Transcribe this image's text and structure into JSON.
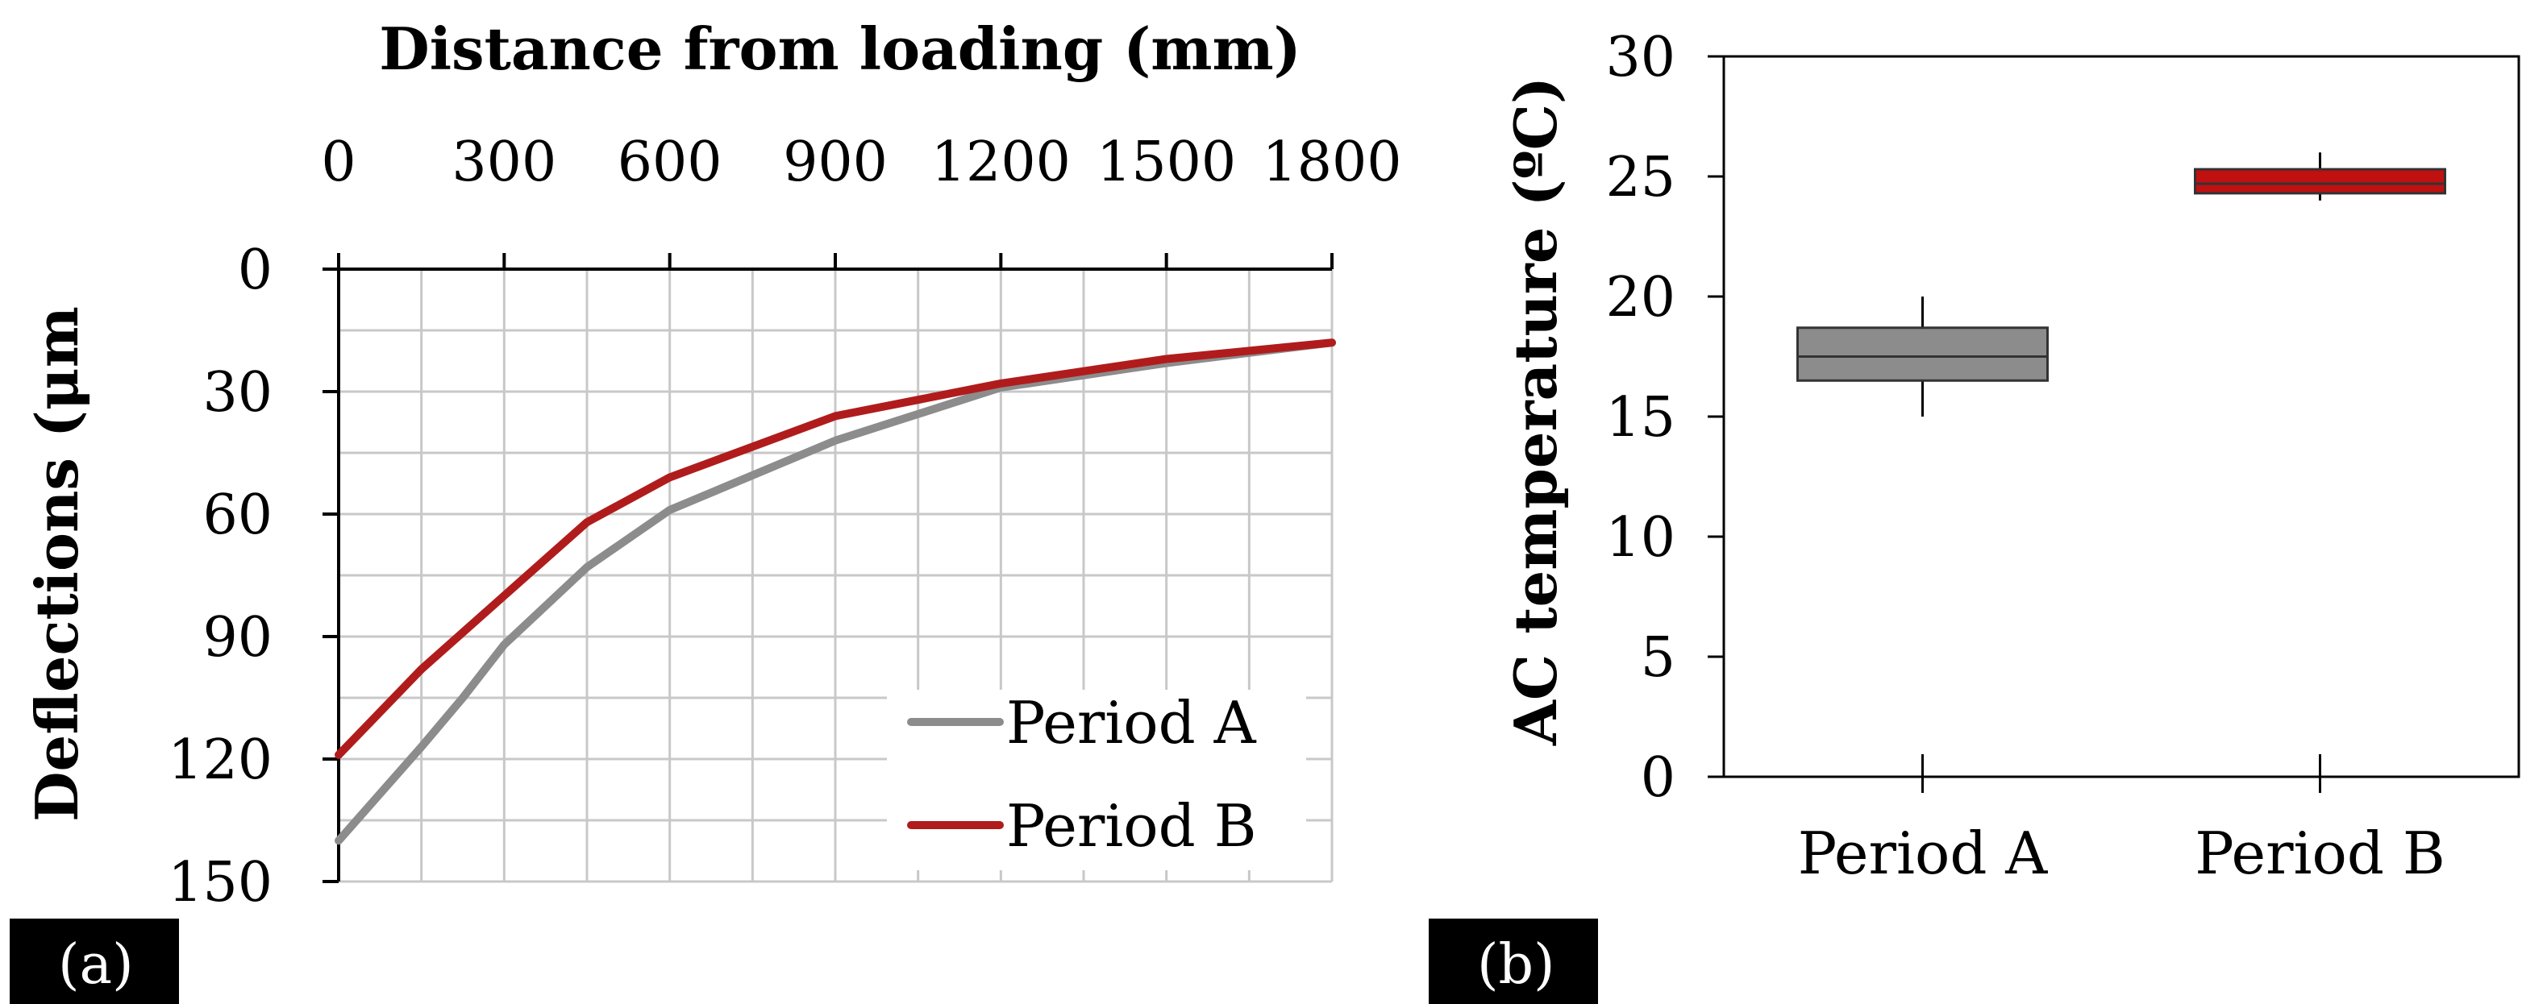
{
  "colors": {
    "series_a": "#8c8c8c",
    "series_b": "#b01c1c",
    "grid": "#c8c8c8",
    "axis": "#000000",
    "label_bg": "#000000",
    "label_text": "#ffffff",
    "box_a_fill": "#8c8c8c",
    "box_b_fill": "#c01010"
  },
  "panels": {
    "a_label": "(a)",
    "b_label": "(b)"
  },
  "chart_data": [
    {
      "id": "a",
      "type": "line",
      "title": "",
      "xlabel": "Distance from loading (mm)",
      "ylabel": "Deflections (μm",
      "x_axis_position": "top",
      "y_inverted": true,
      "xlim": [
        0,
        1800
      ],
      "ylim": [
        0,
        150
      ],
      "x_ticks": [
        0,
        300,
        600,
        900,
        1200,
        1500,
        1800
      ],
      "y_ticks": [
        0,
        30,
        60,
        90,
        120,
        150
      ],
      "x_grid_step": 150,
      "y_grid_step": 15,
      "grid": true,
      "legend_position": "bottom-right",
      "series": [
        {
          "name": "Period A",
          "color": "#8c8c8c",
          "x": [
            0,
            150,
            225,
            300,
            450,
            600,
            900,
            1200,
            1500,
            1800
          ],
          "y": [
            140,
            117,
            105,
            92,
            73,
            59,
            42,
            29,
            23,
            18
          ]
        },
        {
          "name": "Period B",
          "color": "#b01c1c",
          "x": [
            0,
            150,
            300,
            450,
            600,
            900,
            1200,
            1500,
            1800
          ],
          "y": [
            119,
            98,
            80,
            62,
            51,
            36,
            28,
            22,
            18
          ]
        }
      ]
    },
    {
      "id": "b",
      "type": "box",
      "title": "",
      "xlabel": "",
      "ylabel": "AC temperature (ºC)",
      "ylim": [
        0,
        30
      ],
      "y_ticks": [
        0,
        5,
        10,
        15,
        20,
        25,
        30
      ],
      "categories": [
        "Period A",
        "Period B"
      ],
      "boxes": [
        {
          "name": "Period A",
          "min": 15,
          "q1": 16.5,
          "median": 17.5,
          "q3": 18.7,
          "max": 20,
          "fill": "#8c8c8c"
        },
        {
          "name": "Period B",
          "min": 24,
          "q1": 24.3,
          "median": 24.7,
          "q3": 25.3,
          "max": 26,
          "fill": "#c01010"
        }
      ]
    }
  ]
}
